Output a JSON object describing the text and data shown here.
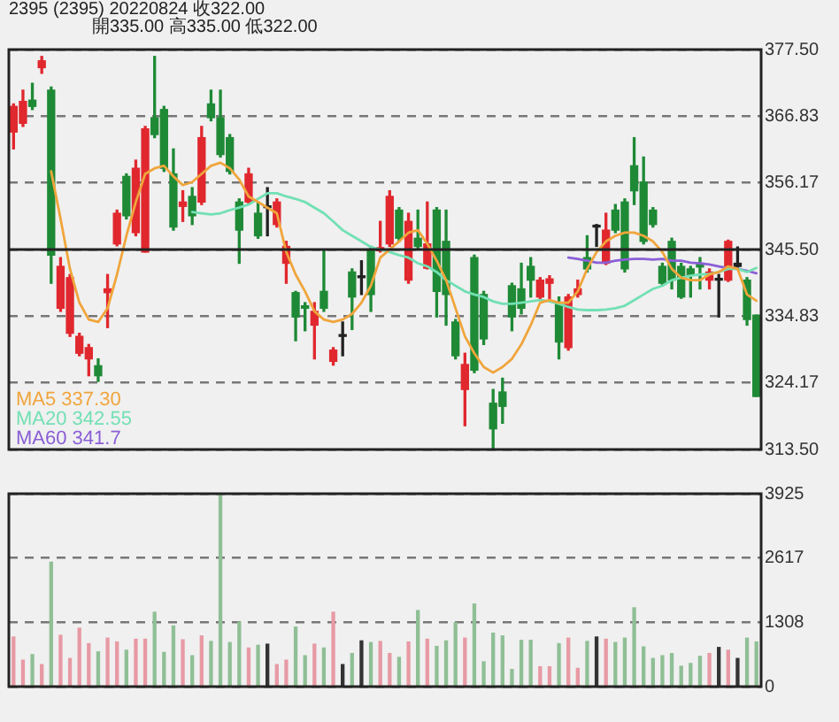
{
  "chart_data": [
    {
      "type": "candlestick",
      "title": "2395 (2395) 20220824 收322.00",
      "subtitle": "開335.00 高335.00 低322.00",
      "categories": [
        null,
        null,
        null,
        null,
        null,
        null,
        null,
        null,
        null,
        null,
        null,
        null,
        null,
        null,
        null,
        null,
        null,
        null,
        null,
        null,
        null,
        null,
        null,
        null,
        null,
        null,
        null,
        null,
        null,
        null,
        null,
        null,
        null,
        null,
        null,
        null,
        null,
        null,
        null,
        null,
        null,
        null,
        null,
        null,
        null,
        null,
        null,
        null,
        null,
        null,
        null,
        null,
        null,
        null,
        null,
        null,
        null,
        null,
        null,
        null,
        null,
        null,
        null,
        null,
        null,
        null,
        null,
        null,
        null,
        null,
        null,
        null,
        null,
        null,
        null,
        null,
        null,
        null,
        null,
        null
      ],
      "ohlc": [
        [
          364.3,
          368.8,
          361.6,
          368.4
        ],
        [
          365.7,
          371.0,
          365.2,
          369.2
        ],
        [
          369.4,
          372.1,
          367.9,
          368.4
        ],
        [
          374.6,
          376.4,
          373.7,
          375.7
        ],
        [
          371.0,
          371.5,
          340.1,
          344.6
        ],
        [
          336.1,
          344.2,
          335.6,
          342.8
        ],
        [
          332.1,
          341.5,
          331.6,
          341.0
        ],
        [
          328.9,
          332.1,
          328.5,
          331.6
        ],
        [
          328.0,
          330.3,
          325.3,
          329.8
        ],
        [
          326.9,
          328.0,
          324.4,
          325.3
        ],
        [
          338.6,
          341.5,
          333.0,
          339.2
        ],
        [
          346.4,
          351.8,
          346.1,
          351.3
        ],
        [
          357.2,
          357.6,
          350.4,
          350.9
        ],
        [
          348.2,
          359.8,
          347.7,
          358.5
        ],
        [
          345.1,
          365.2,
          345.1,
          364.8
        ],
        [
          366.6,
          376.4,
          363.4,
          363.9
        ],
        [
          367.9,
          368.4,
          358.0,
          358.5
        ],
        [
          357.6,
          361.6,
          348.6,
          349.1
        ],
        [
          352.4,
          354.9,
          350.0,
          353.1
        ],
        [
          354.0,
          355.4,
          349.5,
          350.9
        ],
        [
          353.1,
          365.2,
          352.7,
          363.4
        ],
        [
          368.8,
          371.0,
          366.1,
          366.6
        ],
        [
          366.6,
          371.0,
          360.3,
          360.7
        ],
        [
          363.4,
          363.9,
          357.6,
          358.0
        ],
        [
          353.1,
          353.6,
          343.3,
          348.6
        ],
        [
          353.1,
          358.5,
          352.7,
          357.6
        ],
        [
          351.3,
          353.1,
          347.3,
          347.7
        ],
        [
          352.2,
          355.4,
          347.7,
          352.2
        ],
        [
          349.5,
          353.6,
          349.1,
          353.1
        ],
        [
          343.3,
          346.8,
          340.1,
          346.0
        ],
        [
          338.6,
          338.8,
          330.9,
          334.7
        ],
        [
          336.5,
          337.0,
          332.5,
          336.1
        ],
        [
          333.4,
          337.0,
          328.0,
          335.6
        ],
        [
          338.8,
          345.5,
          335.6,
          336.1
        ],
        [
          327.6,
          329.8,
          327.0,
          329.4
        ],
        [
          331.6,
          333.9,
          328.5,
          331.6
        ],
        [
          341.9,
          342.4,
          332.7,
          337.9
        ],
        [
          341.0,
          343.7,
          338.3,
          341.0
        ],
        [
          345.5,
          346.0,
          335.6,
          338.3
        ],
        [
          345.3,
          350.0,
          345.1,
          345.8
        ],
        [
          346.4,
          354.9,
          346.0,
          354.0
        ],
        [
          351.8,
          352.2,
          346.8,
          347.3
        ],
        [
          340.6,
          351.3,
          340.1,
          350.0
        ],
        [
          347.3,
          351.8,
          345.5,
          346.0
        ],
        [
          342.5,
          353.1,
          342.4,
          346.4
        ],
        [
          351.8,
          352.2,
          334.7,
          338.8
        ],
        [
          346.8,
          351.8,
          333.4,
          338.3
        ],
        [
          333.9,
          334.3,
          328.0,
          328.5
        ],
        [
          323.1,
          328.9,
          317.3,
          327.1
        ],
        [
          344.2,
          344.6,
          325.8,
          326.2
        ],
        [
          338.3,
          338.8,
          330.3,
          331.2
        ],
        [
          320.9,
          323.1,
          313.5,
          316.8
        ],
        [
          322.7,
          324.9,
          317.7,
          320.4
        ],
        [
          339.7,
          340.1,
          332.5,
          334.7
        ],
        [
          339.2,
          343.3,
          335.2,
          336.1
        ],
        [
          342.8,
          344.2,
          337.9,
          340.6
        ],
        [
          337.9,
          341.0,
          337.4,
          340.6
        ],
        [
          340.1,
          341.3,
          337.4,
          340.8
        ],
        [
          337.0,
          337.9,
          328.0,
          330.7
        ],
        [
          329.8,
          338.3,
          329.4,
          337.9
        ],
        [
          338.3,
          340.6,
          337.9,
          339.2
        ],
        [
          344.2,
          347.7,
          341.9,
          342.4
        ],
        [
          349.1,
          349.5,
          346.0,
          349.1
        ],
        [
          343.3,
          351.3,
          343.1,
          348.6
        ],
        [
          351.8,
          352.7,
          348.2,
          348.6
        ],
        [
          353.1,
          353.6,
          341.9,
          342.4
        ],
        [
          358.9,
          363.4,
          352.7,
          354.9
        ],
        [
          356.3,
          360.3,
          346.4,
          346.8
        ],
        [
          351.8,
          352.2,
          349.1,
          349.5
        ],
        [
          342.8,
          343.3,
          339.7,
          340.1
        ],
        [
          346.8,
          347.3,
          339.2,
          340.6
        ],
        [
          342.8,
          343.3,
          337.7,
          337.9
        ],
        [
          342.4,
          342.8,
          337.9,
          341.5
        ],
        [
          343.3,
          344.2,
          339.2,
          342.7
        ],
        [
          340.6,
          342.4,
          339.2,
          341.9
        ],
        [
          340.6,
          341.5,
          334.7,
          340.6
        ],
        [
          340.6,
          347.0,
          340.4,
          346.8
        ],
        [
          343.3,
          345.9,
          342.4,
          342.8
        ],
        [
          340.6,
          341.0,
          333.4,
          334.3
        ],
        [
          335.0,
          335.0,
          322.0,
          322.0
        ]
      ],
      "colors": [
        "#e0282e",
        "#e0282e",
        "#1f8a36",
        "#e0282e",
        "#1f8a36",
        "#e0282e",
        "#e0282e",
        "#e0282e",
        "#e0282e",
        "#1f8a36",
        "#e0282e",
        "#e0282e",
        "#1f8a36",
        "#e0282e",
        "#e0282e",
        "#1f8a36",
        "#1f8a36",
        "#1f8a36",
        "#e0282e",
        "#1f8a36",
        "#e0282e",
        "#1f8a36",
        "#1f8a36",
        "#1f8a36",
        "#1f8a36",
        "#e0282e",
        "#1f8a36",
        "#222222",
        "#e0282e",
        "#e0282e",
        "#1f8a36",
        "#1f8a36",
        "#e0282e",
        "#1f8a36",
        "#e0282e",
        "#222222",
        "#1f8a36",
        "#222222",
        "#1f8a36",
        "#e0282e",
        "#e0282e",
        "#1f8a36",
        "#e0282e",
        "#1f8a36",
        "#e0282e",
        "#1f8a36",
        "#1f8a36",
        "#1f8a36",
        "#e0282e",
        "#1f8a36",
        "#1f8a36",
        "#1f8a36",
        "#1f8a36",
        "#1f8a36",
        "#1f8a36",
        "#1f8a36",
        "#e0282e",
        "#e0282e",
        "#1f8a36",
        "#e0282e",
        "#e0282e",
        "#1f8a36",
        "#222222",
        "#e0282e",
        "#1f8a36",
        "#1f8a36",
        "#1f8a36",
        "#1f8a36",
        "#1f8a36",
        "#1f8a36",
        "#1f8a36",
        "#1f8a36",
        "#1f8a36",
        "#1f8a36",
        "#e0282e",
        "#222222",
        "#e0282e",
        "#222222",
        "#1f8a36",
        "#1f8a36"
      ],
      "series": [
        {
          "name": "MA5 337.30",
          "type": "line",
          "color": "#f0a53c",
          "values": [
            null,
            null,
            null,
            null,
            358.0,
            350.4,
            342.4,
            337.0,
            334.3,
            333.9,
            336.1,
            341.5,
            347.7,
            353.1,
            357.6,
            358.5,
            358.9,
            357.2,
            355.8,
            356.3,
            357.6,
            358.9,
            359.4,
            358.5,
            356.7,
            354.0,
            353.1,
            352.2,
            351.3,
            345.1,
            341.5,
            338.8,
            335.6,
            334.3,
            333.9,
            334.3,
            335.2,
            337.0,
            339.7,
            344.2,
            345.5,
            346.8,
            348.2,
            348.6,
            346.4,
            343.7,
            340.6,
            336.1,
            331.6,
            328.9,
            326.7,
            325.8,
            326.7,
            328.0,
            330.3,
            333.4,
            337.0,
            337.4,
            337.0,
            337.0,
            338.8,
            342.4,
            345.1,
            346.8,
            347.7,
            348.2,
            348.2,
            347.7,
            346.8,
            345.1,
            342.4,
            341.0,
            340.6,
            340.6,
            341.5,
            341.9,
            342.8,
            342.4,
            338.3,
            337.3
          ]
        },
        {
          "name": "MA20 342.55",
          "type": "line",
          "color": "#72e0b4",
          "values": [
            null,
            null,
            null,
            null,
            null,
            null,
            null,
            null,
            null,
            null,
            null,
            null,
            null,
            null,
            null,
            null,
            null,
            null,
            null,
            351.5,
            351.3,
            351.1,
            351.3,
            351.8,
            352.2,
            352.7,
            353.6,
            354.5,
            354.5,
            354.0,
            353.6,
            353.1,
            352.2,
            351.3,
            350.0,
            348.6,
            347.7,
            346.8,
            345.9,
            345.5,
            345.1,
            344.6,
            344.2,
            343.3,
            342.8,
            341.9,
            340.6,
            339.7,
            338.8,
            338.3,
            337.9,
            337.2,
            336.8,
            336.8,
            337.0,
            337.2,
            337.4,
            337.2,
            336.8,
            336.3,
            335.9,
            335.8,
            335.8,
            335.9,
            336.1,
            336.5,
            337.4,
            338.3,
            339.2,
            339.7,
            340.6,
            341.0,
            341.3,
            341.5,
            341.6,
            341.9,
            342.4,
            342.4,
            341.9,
            342.55
          ]
        },
        {
          "name": "MA60 341.7",
          "type": "line",
          "color": "#8a5fd6",
          "values": [
            null,
            null,
            null,
            null,
            null,
            null,
            null,
            null,
            null,
            null,
            null,
            null,
            null,
            null,
            null,
            null,
            null,
            null,
            null,
            null,
            null,
            null,
            null,
            null,
            null,
            null,
            null,
            null,
            null,
            null,
            null,
            null,
            null,
            null,
            null,
            null,
            null,
            null,
            null,
            null,
            null,
            null,
            null,
            null,
            null,
            null,
            null,
            null,
            null,
            null,
            null,
            null,
            null,
            null,
            null,
            null,
            null,
            null,
            null,
            344.2,
            344.0,
            343.7,
            343.4,
            343.4,
            343.7,
            343.9,
            344.0,
            344.0,
            343.9,
            344.0,
            343.7,
            343.7,
            343.4,
            343.3,
            343.1,
            342.8,
            342.5,
            342.4,
            342.1,
            341.7
          ]
        }
      ],
      "ylim": [
        313.5,
        377.5
      ],
      "yticks": [
        {
          "value": 313.5,
          "label": "313.50"
        },
        {
          "value": 324.17,
          "label": "324.17"
        },
        {
          "value": 334.83,
          "label": "334.83"
        },
        {
          "value": 345.5,
          "label": "345.50"
        },
        {
          "value": 356.17,
          "label": "356.17"
        },
        {
          "value": 366.83,
          "label": "366.83"
        },
        {
          "value": 377.5,
          "label": "377.50"
        }
      ],
      "ref_lines": [
        {
          "axis": "y",
          "value": 345.5,
          "color": "#222222",
          "line_style": "solid"
        }
      ],
      "grid": "y",
      "legend": "bottom left",
      "marker": "none",
      "line_style": "solid",
      "tick_labels": "y"
    },
    {
      "type": "bar",
      "categories": [
        null,
        null,
        null,
        null,
        null,
        null,
        null,
        null,
        null,
        null,
        null,
        null,
        null,
        null,
        null,
        null,
        null,
        null,
        null,
        null,
        null,
        null,
        null,
        null,
        null,
        null,
        null,
        null,
        null,
        null,
        null,
        null,
        null,
        null,
        null,
        null,
        null,
        null,
        null,
        null,
        null,
        null,
        null,
        null,
        null,
        null,
        null,
        null,
        null,
        null,
        null,
        null,
        null,
        null,
        null,
        null,
        null,
        null,
        null,
        null,
        null,
        null,
        null,
        null,
        null,
        null,
        null,
        null,
        null,
        null,
        null,
        null,
        null,
        null,
        null,
        null,
        null,
        null,
        null,
        null
      ],
      "values": [
        1009,
        538,
        650,
        448,
        2533,
        1043,
        572,
        1188,
        874,
        706,
        986,
        908,
        740,
        964,
        964,
        1513,
        695,
        1233,
        953,
        628,
        1031,
        919,
        3925,
        897,
        1312,
        785,
        841,
        863,
        448,
        538,
        1211,
        628,
        863,
        785,
        1513,
        448,
        673,
        930,
        897,
        919,
        673,
        594,
        908,
        1547,
        964,
        818,
        930,
        1300,
        986,
        1681,
        504,
        1087,
        1031,
        348,
        942,
        942,
        404,
        404,
        874,
        986,
        370,
        919,
        1009,
        964,
        897,
        986,
        1603,
        807,
        572,
        628,
        673,
        415,
        471,
        617,
        673,
        796,
        740,
        572,
        986,
        908
      ],
      "colors": [
        "#e79aa4",
        "#e79aa4",
        "#8fbf95",
        "#e79aa4",
        "#8fbf95",
        "#e79aa4",
        "#e79aa4",
        "#e79aa4",
        "#e79aa4",
        "#8fbf95",
        "#e79aa4",
        "#e79aa4",
        "#8fbf95",
        "#e79aa4",
        "#e79aa4",
        "#8fbf95",
        "#8fbf95",
        "#8fbf95",
        "#e79aa4",
        "#8fbf95",
        "#e79aa4",
        "#8fbf95",
        "#8fbf95",
        "#8fbf95",
        "#8fbf95",
        "#e79aa4",
        "#8fbf95",
        "#333333",
        "#e79aa4",
        "#e79aa4",
        "#8fbf95",
        "#8fbf95",
        "#e79aa4",
        "#8fbf95",
        "#e79aa4",
        "#333333",
        "#8fbf95",
        "#333333",
        "#8fbf95",
        "#e79aa4",
        "#e79aa4",
        "#8fbf95",
        "#e79aa4",
        "#8fbf95",
        "#e79aa4",
        "#8fbf95",
        "#8fbf95",
        "#8fbf95",
        "#e79aa4",
        "#8fbf95",
        "#8fbf95",
        "#8fbf95",
        "#8fbf95",
        "#8fbf95",
        "#8fbf95",
        "#8fbf95",
        "#e79aa4",
        "#e79aa4",
        "#8fbf95",
        "#e79aa4",
        "#e79aa4",
        "#8fbf95",
        "#333333",
        "#e79aa4",
        "#8fbf95",
        "#8fbf95",
        "#8fbf95",
        "#8fbf95",
        "#8fbf95",
        "#8fbf95",
        "#8fbf95",
        "#8fbf95",
        "#8fbf95",
        "#8fbf95",
        "#e79aa4",
        "#333333",
        "#e79aa4",
        "#333333",
        "#8fbf95",
        "#8fbf95"
      ],
      "ylim": [
        0,
        3925
      ],
      "yticks": [
        0,
        1308,
        2617,
        3925
      ],
      "grid": "y",
      "tick_labels": "y"
    }
  ]
}
